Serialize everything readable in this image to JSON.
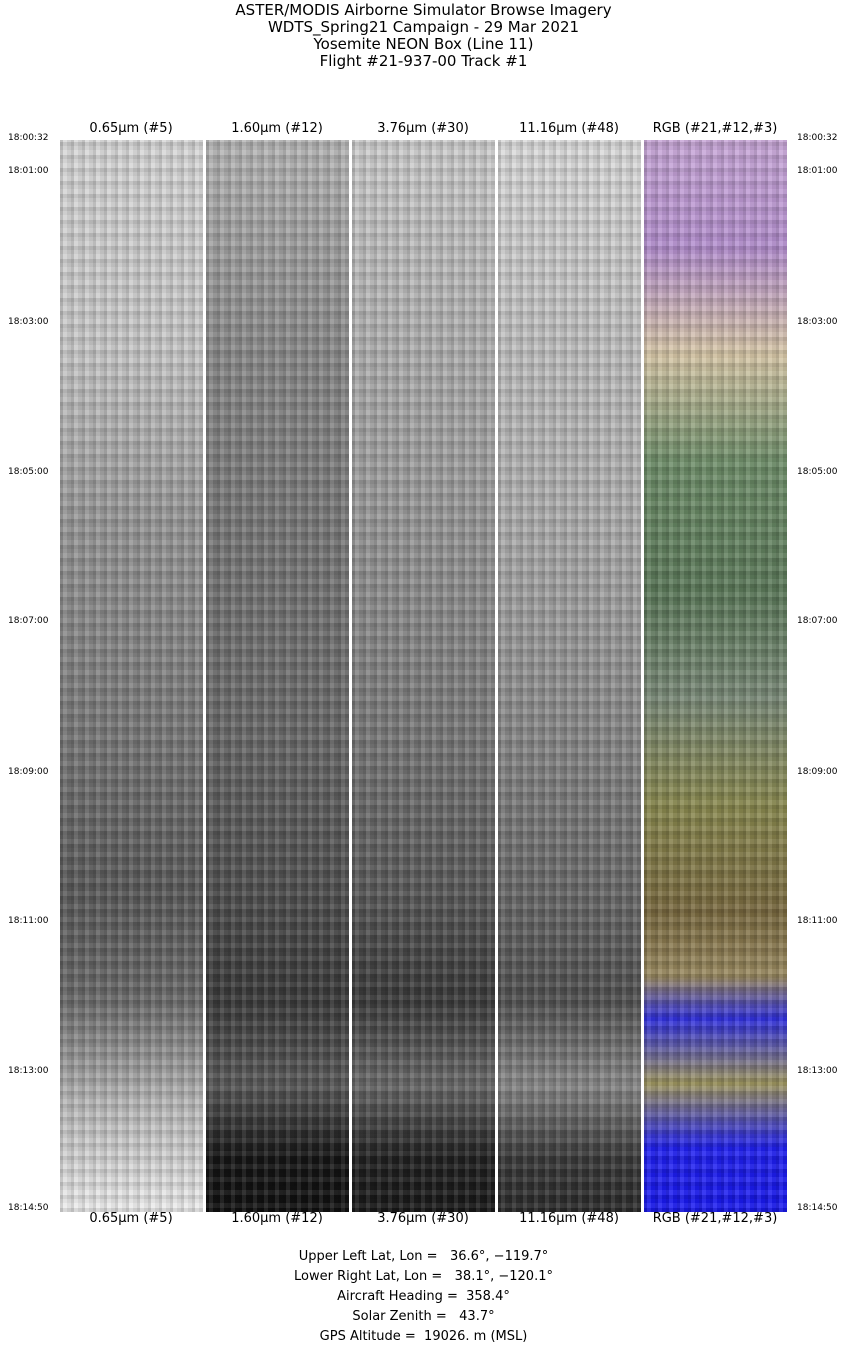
{
  "title_lines": [
    "ASTER/MODIS Airborne Simulator Browse Imagery",
    "WDTS_Spring21 Campaign - 29 Mar 2021",
    "Yosemite NEON Box (Line 11)",
    "Flight #21-937-00 Track #1"
  ],
  "bands": [
    {
      "label": "0.65μm (#5)",
      "type": "grayscale"
    },
    {
      "label": "1.60μm (#12)",
      "type": "grayscale"
    },
    {
      "label": "3.76μm (#30)",
      "type": "grayscale"
    },
    {
      "label": "11.16μm (#48)",
      "type": "grayscale"
    },
    {
      "label": "RGB (#21,#12,#3)",
      "type": "false-color"
    }
  ],
  "time_ticks": [
    "18:00:32",
    "18:01:00",
    "18:03:00",
    "18:05:00",
    "18:07:00",
    "18:09:00",
    "18:11:00",
    "18:13:00",
    "18:14:50"
  ],
  "info": {
    "upper_left": "Upper Left Lat, Lon =   36.6°, −119.7°",
    "lower_right": "Lower Right Lat, Lon =   38.1°, −120.1°",
    "heading": "Aircraft Heading =  358.4°",
    "solar_zenith": "Solar Zenith =   43.7°",
    "gps_altitude": "GPS Altitude =  19026. m (MSL)"
  }
}
